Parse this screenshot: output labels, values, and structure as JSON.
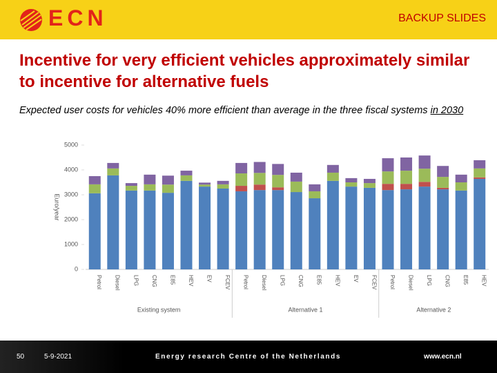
{
  "header": {
    "logo": "ECN",
    "label": "BACKUP SLIDES"
  },
  "title": "Incentive for very efficient vehicles approximately similar to incentive for alternative fuels",
  "subtitle": "Expected user costs for vehicles 40% more efficient than average in the three fiscal systems",
  "subtitle_emphasis": "in 2030",
  "chart_data": {
    "type": "bar",
    "stacked": true,
    "y_label": "Euro/year",
    "categories": [
      "Petrol",
      "Diesel",
      "LPG",
      "CNG",
      "E85",
      "HEV",
      "EV",
      "FCEV",
      "Petrol",
      "Diesel",
      "LPG",
      "CNG",
      "E85",
      "HEV",
      "EV",
      "FCEV",
      "Petrol",
      "Diesel",
      "LPG",
      "CNG",
      "E85",
      "HEV"
    ],
    "groups": [
      {
        "label": "Existing system",
        "size": 8
      },
      {
        "label": "Alternative 1",
        "size": 8
      },
      {
        "label": "Alternative 2",
        "size": 6
      }
    ],
    "series": [
      {
        "color": "#4f81bd",
        "values": [
          3060,
          3780,
          3170,
          3170,
          3080,
          3560,
          3330,
          3250,
          3140,
          3190,
          3190,
          3110,
          2860,
          3560,
          3330,
          3280,
          3190,
          3220,
          3330,
          3220,
          3170,
          3640
        ]
      },
      {
        "color": "#c0504d",
        "values": [
          0,
          0,
          0,
          0,
          0,
          0,
          0,
          0,
          220,
          220,
          110,
          0,
          0,
          0,
          0,
          0,
          250,
          220,
          190,
          60,
          0,
          60
        ]
      },
      {
        "color": "#9bbb59",
        "values": [
          360,
          280,
          190,
          250,
          330,
          220,
          80,
          170,
          500,
          470,
          500,
          420,
          280,
          330,
          170,
          190,
          500,
          530,
          530,
          440,
          330,
          360
        ]
      },
      {
        "color": "#8064a2",
        "values": [
          330,
          220,
          110,
          390,
          360,
          190,
          80,
          140,
          420,
          440,
          440,
          360,
          280,
          310,
          170,
          170,
          530,
          530,
          530,
          440,
          310,
          330
        ]
      }
    ],
    "ylim": [
      0,
      5000
    ],
    "yticks": [
      0,
      1000,
      2000,
      3000,
      4000,
      5000
    ]
  },
  "footer": {
    "page": "50",
    "date": "5-9-2021",
    "org": "Energy research Centre of the Netherlands",
    "url": "www.ecn.nl"
  }
}
